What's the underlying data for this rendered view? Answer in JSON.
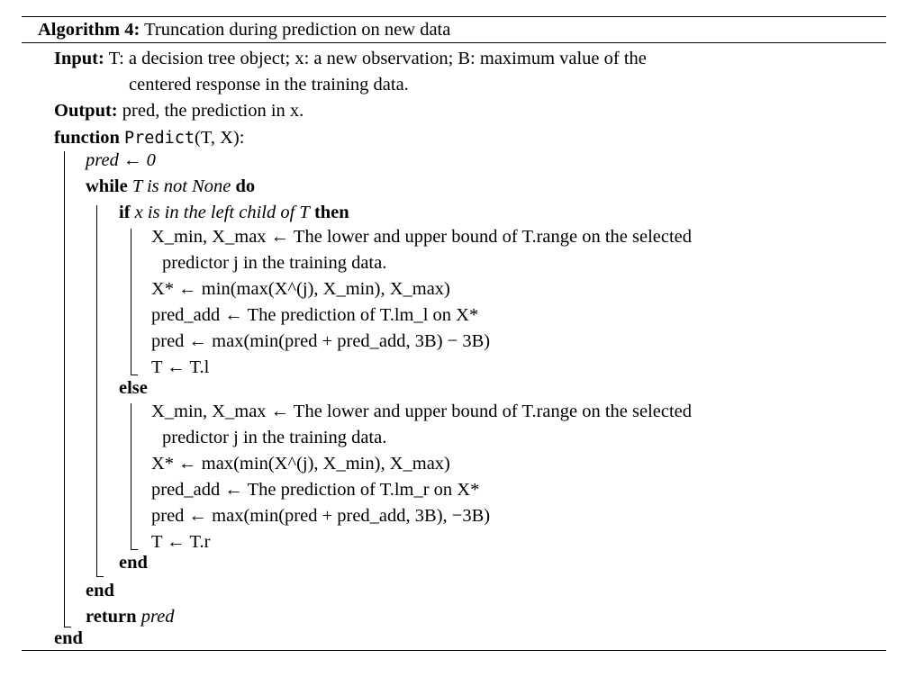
{
  "caption": {
    "label": "Algorithm 4:",
    "text": "Truncation during prediction on new data"
  },
  "input": {
    "label": "Input:",
    "line1": "T: a decision tree object; x: a new observation; B: maximum value of the",
    "line2": "centered response in the training data."
  },
  "output": {
    "label": "Output:",
    "text": "pred, the prediction in x."
  },
  "func": {
    "kw": "function",
    "name": "Predict",
    "args": "(T, X):"
  },
  "body": {
    "init": "pred ← 0",
    "while_kw": "while",
    "while_cond": "T is not None",
    "do_kw": "do",
    "if_kw": "if",
    "if_cond": "x is in the left child of T",
    "then_kw": "then",
    "else_kw": "else",
    "end_kw": "end",
    "return_kw": "return",
    "return_val": "pred",
    "left": {
      "bounds_1": "X_min, X_max ← The lower and upper bound of T.range on the selected",
      "bounds_2": "predictor j in the training data.",
      "xstar": "X* ← min(max(X^(j), X_min), X_max)",
      "pred_add": "pred_add ← The prediction of T.lm_l on X*",
      "pred": "pred ← max(min(pred + pred_add, 3B) − 3B)",
      "next": "T ← T.l"
    },
    "right": {
      "bounds_1": "X_min, X_max ← The lower and upper bound of T.range on the selected",
      "bounds_2": "predictor j in the training data.",
      "xstar": "X* ← max(min(X^(j), X_min), X_max)",
      "pred_add": "pred_add ← The prediction of T.lm_r on X*",
      "pred": "pred ← max(min(pred + pred_add, 3B), −3B)",
      "next": "T ← T.r"
    }
  }
}
